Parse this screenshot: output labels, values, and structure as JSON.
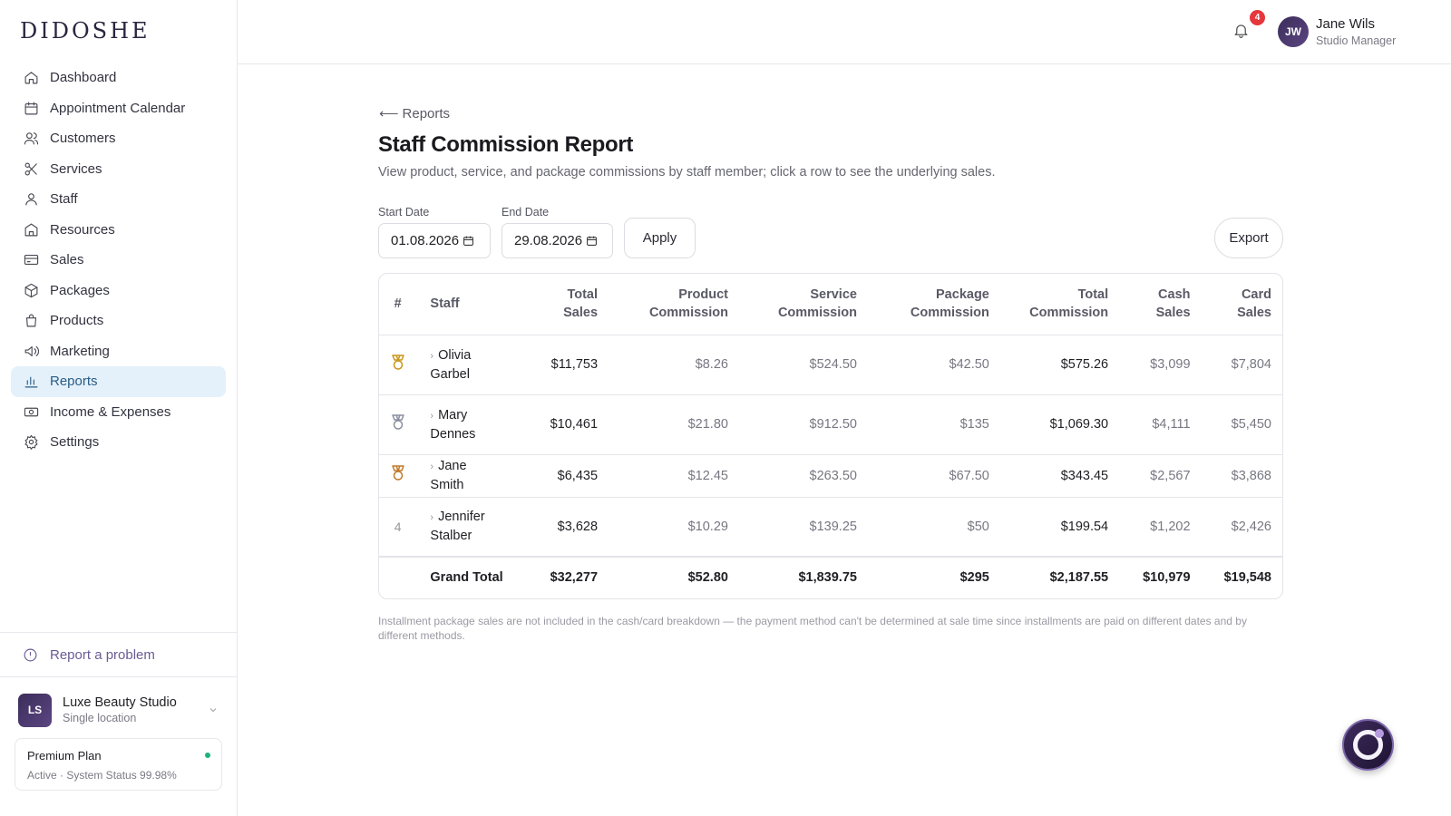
{
  "brand": {
    "logo": "DIDOSHE"
  },
  "sidebar": {
    "items": [
      {
        "label": "Dashboard",
        "icon": "home-icon"
      },
      {
        "label": "Appointment Calendar",
        "icon": "calendar-icon"
      },
      {
        "label": "Customers",
        "icon": "users-icon"
      },
      {
        "label": "Services",
        "icon": "scissors-icon"
      },
      {
        "label": "Staff",
        "icon": "user-icon"
      },
      {
        "label": "Resources",
        "icon": "building-icon"
      },
      {
        "label": "Sales",
        "icon": "credit-card-icon"
      },
      {
        "label": "Packages",
        "icon": "package-icon"
      },
      {
        "label": "Products",
        "icon": "shopping-bag-icon"
      },
      {
        "label": "Marketing",
        "icon": "megaphone-icon"
      },
      {
        "label": "Reports",
        "icon": "bar-chart-icon",
        "active": true
      },
      {
        "label": "Income & Expenses",
        "icon": "banknote-icon"
      },
      {
        "label": "Settings",
        "icon": "gear-icon"
      }
    ],
    "report_problem": "Report a problem",
    "studio": {
      "initials": "LS",
      "name": "Luxe Beauty Studio",
      "subtitle": "Single location"
    },
    "plan": {
      "name": "Premium Plan",
      "status": "Active · System Status 99.98%",
      "status_color": "#1bb37a"
    }
  },
  "header": {
    "notification_count": "4",
    "user": {
      "initials": "JW",
      "name": "Jane Wils",
      "role": "Studio Manager"
    }
  },
  "page": {
    "back_label": "Reports",
    "title": "Staff Commission Report",
    "description": "View product, service, and package commissions by staff member; click a row to see the underlying sales.",
    "filters": {
      "start_label": "Start Date",
      "start_value": "01.08.2026",
      "end_label": "End Date",
      "end_value": "29.08.2026",
      "apply_label": "Apply",
      "export_label": "Export"
    },
    "table": {
      "headers": {
        "rank": "#",
        "staff": "Staff",
        "total_sales": [
          "Total",
          "Sales"
        ],
        "product_commission": [
          "Product",
          "Commission"
        ],
        "service_commission": [
          "Service",
          "Commission"
        ],
        "package_commission": [
          "Package",
          "Commission"
        ],
        "total_commission": [
          "Total",
          "Commission"
        ],
        "cash_sales": [
          "Cash",
          "Sales"
        ],
        "card_sales": [
          "Card",
          "Sales"
        ]
      },
      "rows": [
        {
          "rank": "",
          "medal": "gold",
          "staff": [
            "Olivia",
            "Garbel"
          ],
          "total_sales": "$11,753",
          "product_commission": "$8.26",
          "service_commission": "$524.50",
          "package_commission": "$42.50",
          "total_commission": "$575.26",
          "cash_sales": "$3,099",
          "card_sales": "$7,804"
        },
        {
          "rank": "",
          "medal": "silver",
          "staff": [
            "Mary",
            "Dennes"
          ],
          "total_sales": "$10,461",
          "product_commission": "$21.80",
          "service_commission": "$912.50",
          "package_commission": "$135",
          "total_commission": "$1,069.30",
          "cash_sales": "$4,111",
          "card_sales": "$5,450"
        },
        {
          "rank": "",
          "medal": "bronze",
          "staff": [
            "Jane Smith"
          ],
          "total_sales": "$6,435",
          "product_commission": "$12.45",
          "service_commission": "$263.50",
          "package_commission": "$67.50",
          "total_commission": "$343.45",
          "cash_sales": "$2,567",
          "card_sales": "$3,868"
        },
        {
          "rank": "4",
          "medal": "",
          "staff": [
            "Jennifer",
            "Stalber"
          ],
          "total_sales": "$3,628",
          "product_commission": "$10.29",
          "service_commission": "$139.25",
          "package_commission": "$50",
          "total_commission": "$199.54",
          "cash_sales": "$1,202",
          "card_sales": "$2,426"
        }
      ],
      "grand_total": {
        "label": "Grand Total",
        "total_sales": "$32,277",
        "product_commission": "$52.80",
        "service_commission": "$1,839.75",
        "package_commission": "$295",
        "total_commission": "$2,187.55",
        "cash_sales": "$10,979",
        "card_sales": "$19,548"
      }
    },
    "footnote": "Installment package sales are not included in the cash/card breakdown — the payment method can't be determined at sale time since installments are paid on different dates and by different methods."
  },
  "colors": {
    "accent": "#2a5c86",
    "active_bg": "#e4f1fb",
    "brand": "#3b2d5a",
    "badge": "#e5373c",
    "gold": "#c9961a",
    "silver": "#8a8fa0",
    "bronze": "#c07a2a"
  }
}
